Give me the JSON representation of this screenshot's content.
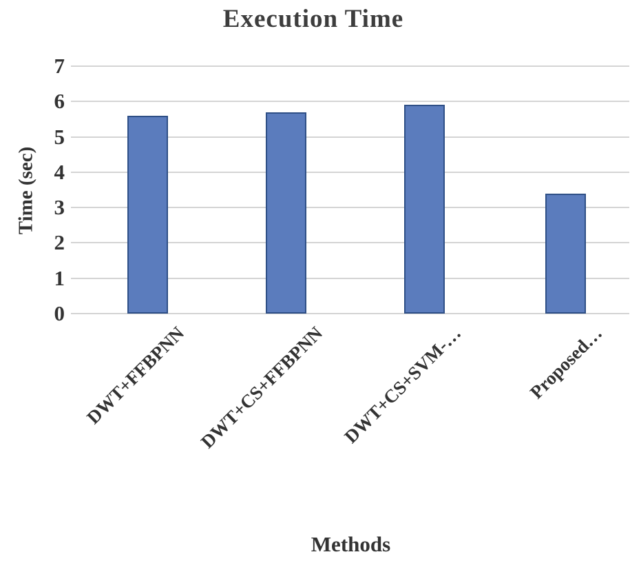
{
  "chart_data": {
    "type": "bar",
    "title": "Execution Time",
    "xlabel": "Methods",
    "ylabel": "Time (sec)",
    "categories": [
      "DWT+FFBPNN",
      "DWT+CS+FFBPNN",
      "DWT+CS+SVM-…",
      "Proposed…"
    ],
    "values": [
      5.6,
      5.7,
      5.9,
      3.4
    ],
    "ylim": [
      0,
      7
    ],
    "yticks": [
      0,
      1,
      2,
      3,
      4,
      5,
      6,
      7
    ],
    "grid": true,
    "legend_position": "none",
    "colors": {
      "bar_fill": "#5b7cbd",
      "bar_border": "#2e4f86",
      "gridline": "#d4d4d4",
      "text": "#333333",
      "title_text": "#3d3d3d",
      "background": "#ffffff"
    }
  }
}
